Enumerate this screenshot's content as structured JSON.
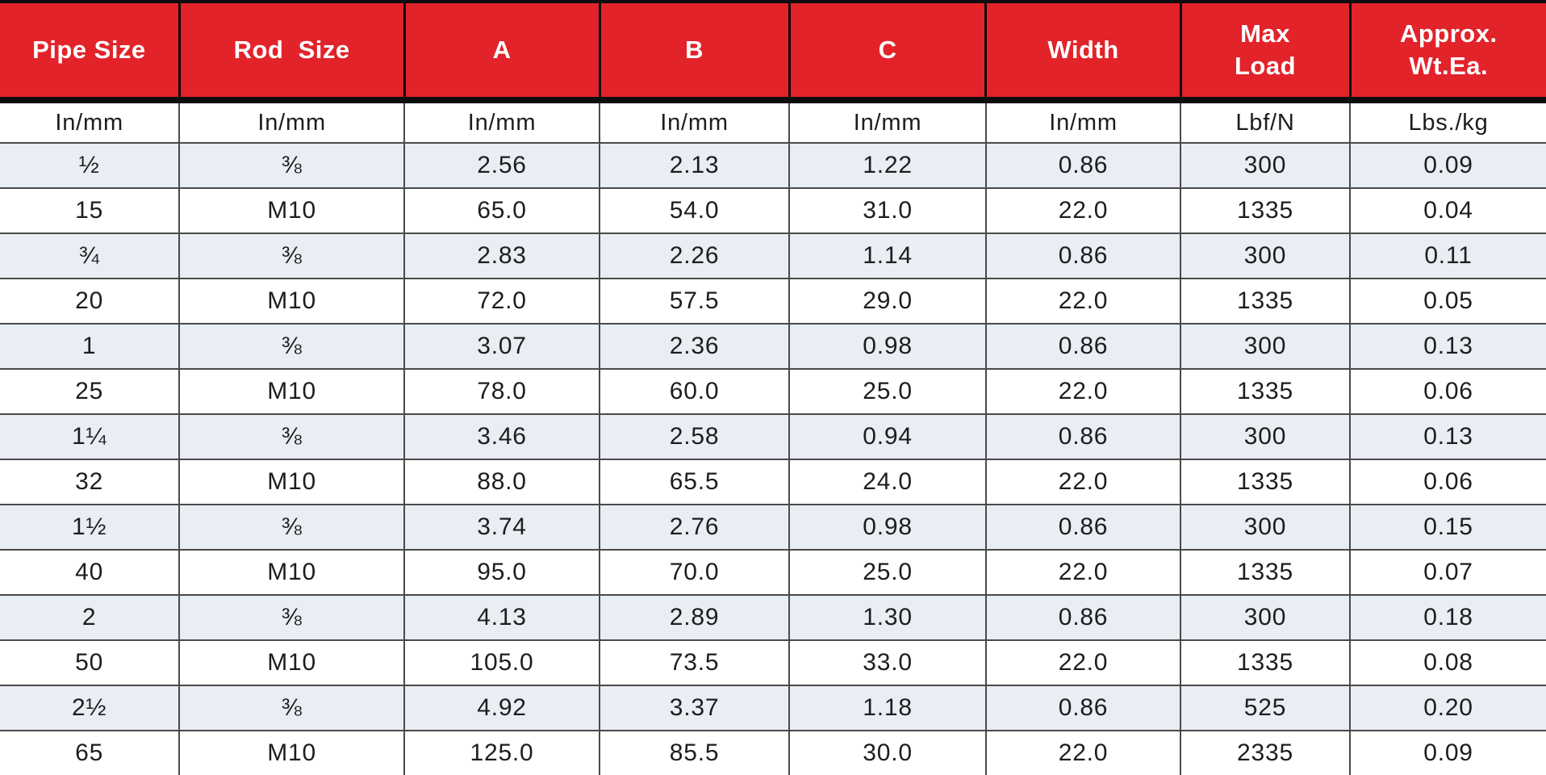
{
  "table": {
    "columns": [
      {
        "label": "Pipe Size",
        "unit": "In/mm"
      },
      {
        "label": "Rod  Size",
        "unit": "In/mm"
      },
      {
        "label": "A",
        "unit": "In/mm"
      },
      {
        "label": "B",
        "unit": "In/mm"
      },
      {
        "label": "C",
        "unit": "In/mm"
      },
      {
        "label": "Width",
        "unit": "In/mm"
      },
      {
        "label": "Max\nLoad",
        "unit": "Lbf/N"
      },
      {
        "label": "Approx.\nWt.Ea.",
        "unit": "Lbs./kg"
      }
    ],
    "rows": [
      [
        "½",
        "⅜",
        "2.56",
        "2.13",
        "1.22",
        "0.86",
        "300",
        "0.09"
      ],
      [
        "15",
        "M10",
        "65.0",
        "54.0",
        "31.0",
        "22.0",
        "1335",
        "0.04"
      ],
      [
        "¾",
        "⅜",
        "2.83",
        "2.26",
        "1.14",
        "0.86",
        "300",
        "0.11"
      ],
      [
        "20",
        "M10",
        "72.0",
        "57.5",
        "29.0",
        "22.0",
        "1335",
        "0.05"
      ],
      [
        "1",
        "⅜",
        "3.07",
        "2.36",
        "0.98",
        "0.86",
        "300",
        "0.13"
      ],
      [
        "25",
        "M10",
        "78.0",
        "60.0",
        "25.0",
        "22.0",
        "1335",
        "0.06"
      ],
      [
        "1¼",
        "⅜",
        "3.46",
        "2.58",
        "0.94",
        "0.86",
        "300",
        "0.13"
      ],
      [
        "32",
        "M10",
        "88.0",
        "65.5",
        "24.0",
        "22.0",
        "1335",
        "0.06"
      ],
      [
        "1½",
        "⅜",
        "3.74",
        "2.76",
        "0.98",
        "0.86",
        "300",
        "0.15"
      ],
      [
        "40",
        "M10",
        "95.0",
        "70.0",
        "25.0",
        "22.0",
        "1335",
        "0.07"
      ],
      [
        "2",
        "⅜",
        "4.13",
        "2.89",
        "1.30",
        "0.86",
        "300",
        "0.18"
      ],
      [
        "50",
        "M10",
        "105.0",
        "73.5",
        "33.0",
        "22.0",
        "1335",
        "0.08"
      ],
      [
        "2½",
        "⅜",
        "4.92",
        "3.37",
        "1.18",
        "0.86",
        "525",
        "0.20"
      ],
      [
        "65",
        "M10",
        "125.0",
        "85.5",
        "30.0",
        "22.0",
        "2335",
        "0.09"
      ]
    ],
    "colors": {
      "header_bg": "#e2232a",
      "header_text": "#ffffff",
      "row_alt_bg": "#e9edf4",
      "row_bg": "#ffffff",
      "border_heavy": "#0d0d0d",
      "border_grid": "#4a4a4a",
      "body_text": "#1d1d1d"
    }
  }
}
